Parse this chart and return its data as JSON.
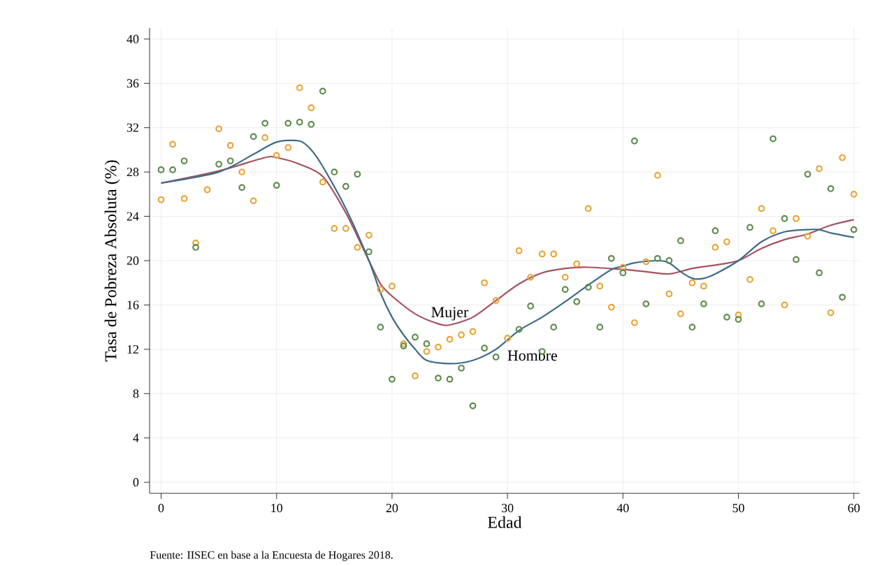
{
  "chart_data": {
    "type": "scatter",
    "xlabel": "Edad",
    "ylabel": "Tasa de Pobreza Absoluta (%)",
    "annotations": [
      "Fuente: IISEC en base a la Encuesta de Hogares 2018."
    ],
    "xlim": [
      -1,
      60.5
    ],
    "ylim": [
      -1,
      41
    ],
    "xticks": [
      0,
      10,
      20,
      30,
      40,
      50,
      60
    ],
    "yticks": [
      0,
      4,
      8,
      12,
      16,
      20,
      24,
      28,
      32,
      36,
      40
    ],
    "grid": true,
    "marker": "circle",
    "x": [
      0,
      1,
      2,
      3,
      4,
      5,
      6,
      7,
      8,
      9,
      10,
      11,
      12,
      13,
      14,
      15,
      16,
      17,
      18,
      19,
      20,
      21,
      22,
      23,
      24,
      25,
      26,
      27,
      28,
      29,
      30,
      31,
      32,
      33,
      34,
      35,
      36,
      37,
      38,
      39,
      40,
      41,
      42,
      43,
      44,
      45,
      46,
      47,
      48,
      49,
      50,
      51,
      52,
      53,
      54,
      55,
      56,
      57,
      58,
      59,
      60
    ],
    "series": [
      {
        "color": "#e8a53c",
        "values": [
          25.5,
          30.5,
          25.6,
          21.6,
          26.4,
          31.9,
          30.4,
          28.0,
          25.4,
          31.1,
          29.5,
          30.2,
          35.6,
          33.8,
          27.1,
          22.9,
          22.9,
          21.2,
          22.3,
          17.4,
          17.7,
          12.5,
          9.6,
          11.8,
          12.2,
          12.9,
          13.3,
          13.6,
          18.0,
          16.4,
          13.0,
          20.9,
          18.5,
          20.6,
          20.6,
          18.5,
          19.7,
          24.7,
          17.7,
          15.8,
          19.4,
          14.4,
          19.9,
          27.7,
          17.0,
          15.2,
          18.0,
          17.7,
          21.2,
          21.7,
          15.1,
          18.3,
          24.7,
          22.7,
          16.0,
          23.8,
          22.2,
          28.3,
          15.3,
          29.3,
          26.0
        ]
      },
      {
        "color": "#5f8c4e",
        "values": [
          28.2,
          28.2,
          29.0,
          21.2,
          null,
          28.7,
          29.0,
          26.6,
          31.2,
          32.4,
          26.8,
          32.4,
          32.5,
          32.3,
          35.3,
          28.0,
          26.7,
          27.8,
          20.8,
          14.0,
          9.3,
          12.3,
          13.1,
          12.5,
          9.4,
          9.3,
          10.3,
          6.9,
          12.1,
          11.3,
          null,
          13.8,
          15.9,
          11.8,
          14.0,
          17.4,
          16.3,
          17.6,
          14.0,
          20.2,
          18.9,
          30.8,
          16.1,
          20.2,
          20.0,
          21.8,
          14.0,
          16.1,
          22.7,
          14.9,
          14.7,
          23.0,
          16.1,
          31.0,
          23.8,
          20.1,
          27.8,
          18.9,
          26.5,
          16.7,
          22.8
        ]
      },
      {
        "type": "line",
        "marker": "none",
        "name": "Mujer",
        "color": "#a5525e",
        "x": [
          0,
          5,
          9,
          10,
          12,
          14,
          16,
          18,
          19,
          20,
          22,
          24,
          25,
          27,
          29,
          31,
          33,
          35,
          37,
          40,
          42,
          44,
          46,
          48,
          50,
          52,
          54,
          56,
          58,
          60
        ],
        "values": [
          27.0,
          28.1,
          29.3,
          29.3,
          28.7,
          27.6,
          24.3,
          20.0,
          17.9,
          16.8,
          15.2,
          14.3,
          14.2,
          14.9,
          16.4,
          17.9,
          18.9,
          19.3,
          19.4,
          19.2,
          19.0,
          18.8,
          19.3,
          19.6,
          20.0,
          21.1,
          21.9,
          22.4,
          23.2,
          23.7
        ]
      },
      {
        "type": "line",
        "marker": "none",
        "name": "Hombre",
        "color": "#3d6b88",
        "x": [
          0,
          5,
          8,
          10,
          12,
          13,
          14,
          16,
          18,
          19,
          20,
          21,
          22,
          23,
          25,
          27,
          29,
          31,
          33,
          35,
          37,
          39,
          40,
          41,
          43,
          44,
          45,
          46,
          47,
          48,
          50,
          52,
          54,
          56,
          57,
          58,
          60
        ],
        "values": [
          27.0,
          28.0,
          29.6,
          30.7,
          30.8,
          30.0,
          28.5,
          24.7,
          20.0,
          17.1,
          14.9,
          13.3,
          12.0,
          11.0,
          10.7,
          11.0,
          12.0,
          13.7,
          14.9,
          16.3,
          17.8,
          19.2,
          19.5,
          19.8,
          20.0,
          19.8,
          19.0,
          18.4,
          18.4,
          18.8,
          20.0,
          21.7,
          22.6,
          22.8,
          22.8,
          22.5,
          22.1
        ]
      }
    ]
  }
}
